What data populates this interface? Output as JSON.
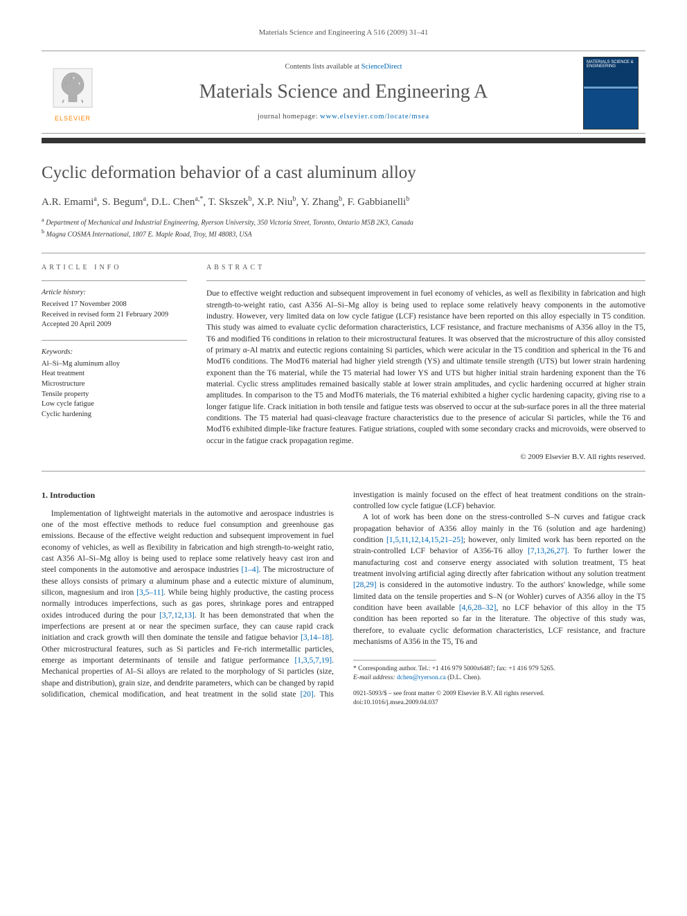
{
  "running_head": "Materials Science and Engineering A 516 (2009) 31–41",
  "masthead": {
    "contents_prefix": "Contents lists available at ",
    "contents_link": "ScienceDirect",
    "journal_name": "Materials Science and Engineering A",
    "homepage_prefix": "journal homepage: ",
    "homepage_url": "www.elsevier.com/locate/msea",
    "publisher_wordmark": "ELSEVIER",
    "cover_title": "MATERIALS SCIENCE & ENGINEERING"
  },
  "article": {
    "title": "Cyclic deformation behavior of a cast aluminum alloy",
    "authors_html": "A.R. Emami<sup>a</sup>, S. Begum<sup>a</sup>, D.L. Chen<sup>a,*</sup>, T. Skszek<sup>b</sup>, X.P. Niu<sup>b</sup>, Y. Zhang<sup>b</sup>, F. Gabbianelli<sup>b</sup>",
    "affiliations": [
      {
        "sup": "a",
        "text": "Department of Mechanical and Industrial Engineering, Ryerson University, 350 Victoria Street, Toronto, Ontario M5B 2K3, Canada"
      },
      {
        "sup": "b",
        "text": "Magna COSMA International, 1807 E. Maple Road, Troy, MI 48083, USA"
      }
    ]
  },
  "article_info": {
    "head": "ARTICLE INFO",
    "history_label": "Article history:",
    "history": [
      "Received 17 November 2008",
      "Received in revised form 21 February 2009",
      "Accepted 20 April 2009"
    ],
    "keywords_label": "Keywords:",
    "keywords": [
      "Al–Si–Mg aluminum alloy",
      "Heat treatment",
      "Microstructure",
      "Tensile property",
      "Low cycle fatigue",
      "Cyclic hardening"
    ]
  },
  "abstract": {
    "head": "ABSTRACT",
    "text": "Due to effective weight reduction and subsequent improvement in fuel economy of vehicles, as well as flexibility in fabrication and high strength-to-weight ratio, cast A356 Al–Si–Mg alloy is being used to replace some relatively heavy components in the automotive industry. However, very limited data on low cycle fatigue (LCF) resistance have been reported on this alloy especially in T5 condition. This study was aimed to evaluate cyclic deformation characteristics, LCF resistance, and fracture mechanisms of A356 alloy in the T5, T6 and modified T6 conditions in relation to their microstructural features. It was observed that the microstructure of this alloy consisted of primary α-Al matrix and eutectic regions containing Si particles, which were acicular in the T5 condition and spherical in the T6 and ModT6 conditions. The ModT6 material had higher yield strength (YS) and ultimate tensile strength (UTS) but lower strain hardening exponent than the T6 material, while the T5 material had lower YS and UTS but higher initial strain hardening exponent than the T6 material. Cyclic stress amplitudes remained basically stable at lower strain amplitudes, and cyclic hardening occurred at higher strain amplitudes. In comparison to the T5 and ModT6 materials, the T6 material exhibited a higher cyclic hardening capacity, giving rise to a longer fatigue life. Crack initiation in both tensile and fatigue tests was observed to occur at the sub-surface pores in all the three material conditions. The T5 material had quasi-cleavage fracture characteristics due to the presence of acicular Si particles, while the T6 and ModT6 exhibited dimple-like fracture features. Fatigue striations, coupled with some secondary cracks and microvoids, were observed to occur in the fatigue crack propagation regime.",
    "copyright": "© 2009 Elsevier B.V. All rights reserved."
  },
  "body": {
    "section_head": "1.  Introduction",
    "para1_pre": "Implementation of lightweight materials in the automotive and aerospace industries is one of the most effective methods to reduce fuel consumption and greenhouse gas emissions. Because of the effective weight reduction and subsequent improvement in fuel economy of vehicles, as well as flexibility in fabrication and high strength-to-weight ratio, cast A356 Al–Si–Mg alloy is being used to replace some relatively heavy cast iron and steel components in the automotive and aerospace industries ",
    "ref1": "[1–4]",
    "para1_mid1": ". The microstructure of these alloys consists of primary α aluminum phase and a eutectic mixture of aluminum, silicon, magnesium and iron ",
    "ref2": "[3,5–11]",
    "para1_mid2": ". While being highly productive, the casting process normally introduces imperfections, such as gas pores, shrinkage pores and entrapped oxides introduced during the pour ",
    "ref3": "[3,7,12,13]",
    "para1_mid3": ". It has been demonstrated that when the imperfections are present at or near the specimen surface, they can cause rapid crack initiation and crack growth will then dominate the tensile and fatigue behavior ",
    "ref4": "[3,14–18]",
    "para1_post": ". Other microstructural features, such as Si particles and ",
    "para1b_pre": "Fe-rich intermetallic particles, emerge as important determinants of tensile and fatigue performance ",
    "ref5": "[1,3,5,7,19]",
    "para1b_mid": ". Mechanical properties of Al–Si alloys are related to the morphology of Si particles (size, shape and distribution), grain size, and dendrite parameters, which can be changed by rapid solidification, chemical modification, and heat treatment in the solid state ",
    "ref6": "[20]",
    "para1b_post": ". This investigation is mainly focused on the effect of heat treatment conditions on the strain-controlled low cycle fatigue (LCF) behavior.",
    "para2_pre": "A lot of work has been done on the stress-controlled S–N curves and fatigue crack propagation behavior of A356 alloy mainly in the T6 (solution and age hardening) condition ",
    "ref7": "[1,5,11,12,14,15,21–25]",
    "para2_mid1": "; however, only limited work has been reported on the strain-controlled LCF behavior of A356-T6 alloy ",
    "ref8": "[7,13,26,27]",
    "para2_mid2": ". To further lower the manufacturing cost and conserve energy associated with solution treatment, T5 heat treatment involving artificial aging directly after fabrication without any solution treatment ",
    "ref9": "[28,29]",
    "para2_mid3": " is considered in the automotive industry. To the authors' knowledge, while some limited data on the tensile properties and S–N (or Wohler) curves of A356 alloy in the T5 condition have been available ",
    "ref10": "[4,6,28–32]",
    "para2_post": ", no LCF behavior of this alloy in the T5 condition has been reported so far in the literature. The objective of this study was, therefore, to evaluate cyclic deformation characteristics, LCF resistance, and fracture mechanisms of A356 in the T5, T6 and"
  },
  "footnotes": {
    "corr_label": "* Corresponding author. Tel.: +1 416 979 5000x6487; fax: +1 416 979 5265.",
    "email_label": "E-mail address:",
    "email": "dchen@ryerson.ca",
    "email_person": "(D.L. Chen).",
    "issn_line": "0921-5093/$ – see front matter © 2009 Elsevier B.V. All rights reserved.",
    "doi_line": "doi:10.1016/j.msea.2009.04.037"
  },
  "colors": {
    "link": "#0066b3",
    "elsevier_orange": "#ff8200",
    "rule_dark": "#333333",
    "rule_light": "#999999",
    "cover_top": "#0a3a6a",
    "cover_bottom": "#0d4a85"
  }
}
